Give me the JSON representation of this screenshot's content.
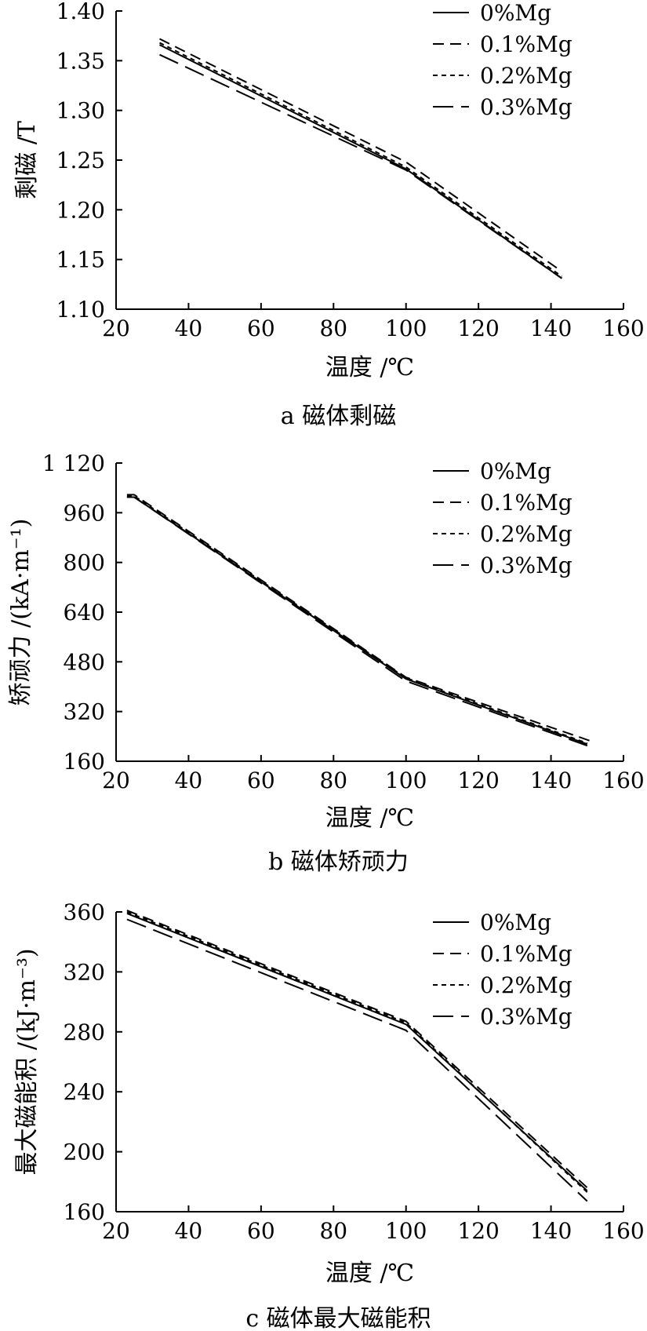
{
  "chart_data": [
    {
      "type": "line",
      "title": "a 磁体剩磁",
      "xlabel": "温度 /℃",
      "ylabel": "剩磁 /T",
      "xlim": [
        20,
        160
      ],
      "ylim": [
        1.1,
        1.4
      ],
      "xticks": [
        "20",
        "40",
        "60",
        "80",
        "100",
        "120",
        "140",
        "160"
      ],
      "yticks": [
        "1.10",
        "1.15",
        "1.20",
        "1.25",
        "1.30",
        "1.35",
        "1.40"
      ],
      "legend_position": "top-right",
      "series": [
        {
          "name": "0%Mg",
          "x": [
            32,
            100,
            143
          ],
          "y": [
            1.366,
            1.241,
            1.131
          ]
        },
        {
          "name": "0.1%Mg",
          "x": [
            32,
            100,
            143
          ],
          "y": [
            1.372,
            1.248,
            1.138
          ]
        },
        {
          "name": "0.2%Mg",
          "x": [
            32,
            100,
            143
          ],
          "y": [
            1.368,
            1.243,
            1.133
          ]
        },
        {
          "name": "0.3%Mg",
          "x": [
            32,
            100,
            143
          ],
          "y": [
            1.356,
            1.24,
            1.131
          ]
        }
      ]
    },
    {
      "type": "line",
      "title": "b 磁体矫顽力",
      "xlabel": "温度 /℃",
      "ylabel": "矫顽力 /(kA·m⁻¹)",
      "xlim": [
        20,
        160
      ],
      "ylim": [
        160,
        1120
      ],
      "xticks": [
        "20",
        "40",
        "60",
        "80",
        "100",
        "120",
        "140",
        "160"
      ],
      "yticks": [
        "160",
        "320",
        "480",
        "640",
        "800",
        "960",
        "1 120"
      ],
      "legend_position": "top-right",
      "series": [
        {
          "name": "0%Mg",
          "x": [
            23,
            25,
            100,
            150
          ],
          "y": [
            1010,
            1010,
            425,
            215
          ]
        },
        {
          "name": "0.1%Mg",
          "x": [
            23,
            25,
            100,
            151
          ],
          "y": [
            1018,
            1018,
            430,
            225
          ]
        },
        {
          "name": "0.2%Mg",
          "x": [
            23,
            25,
            100,
            150
          ],
          "y": [
            1014,
            1014,
            428,
            218
          ]
        },
        {
          "name": "0.3%Mg",
          "x": [
            23,
            25,
            100,
            150
          ],
          "y": [
            1010,
            1010,
            418,
            210
          ]
        }
      ]
    },
    {
      "type": "line",
      "title": "c 磁体最大磁能积",
      "xlabel": "温度 /℃",
      "ylabel": "最大磁能积 /(kJ·m⁻³)",
      "xlim": [
        20,
        160
      ],
      "ylim": [
        160,
        360
      ],
      "xticks": [
        "20",
        "40",
        "60",
        "80",
        "100",
        "120",
        "140",
        "160"
      ],
      "yticks": [
        "160",
        "200",
        "240",
        "280",
        "320",
        "360"
      ],
      "legend_position": "top-right",
      "series": [
        {
          "name": "0%Mg",
          "x": [
            23,
            100,
            150
          ],
          "y": [
            359,
            285,
            174
          ]
        },
        {
          "name": "0.1%Mg",
          "x": [
            23,
            100,
            150
          ],
          "y": [
            361,
            287,
            176
          ]
        },
        {
          "name": "0.2%Mg",
          "x": [
            23,
            100,
            150
          ],
          "y": [
            360,
            286,
            173
          ]
        },
        {
          "name": "0.3%Mg",
          "x": [
            23,
            100,
            150
          ],
          "y": [
            355,
            281,
            167
          ]
        }
      ]
    }
  ],
  "styles": {
    "line_color": "#000000",
    "dash_patterns": [
      "",
      "14 8",
      "6 5",
      "26 10"
    ]
  }
}
